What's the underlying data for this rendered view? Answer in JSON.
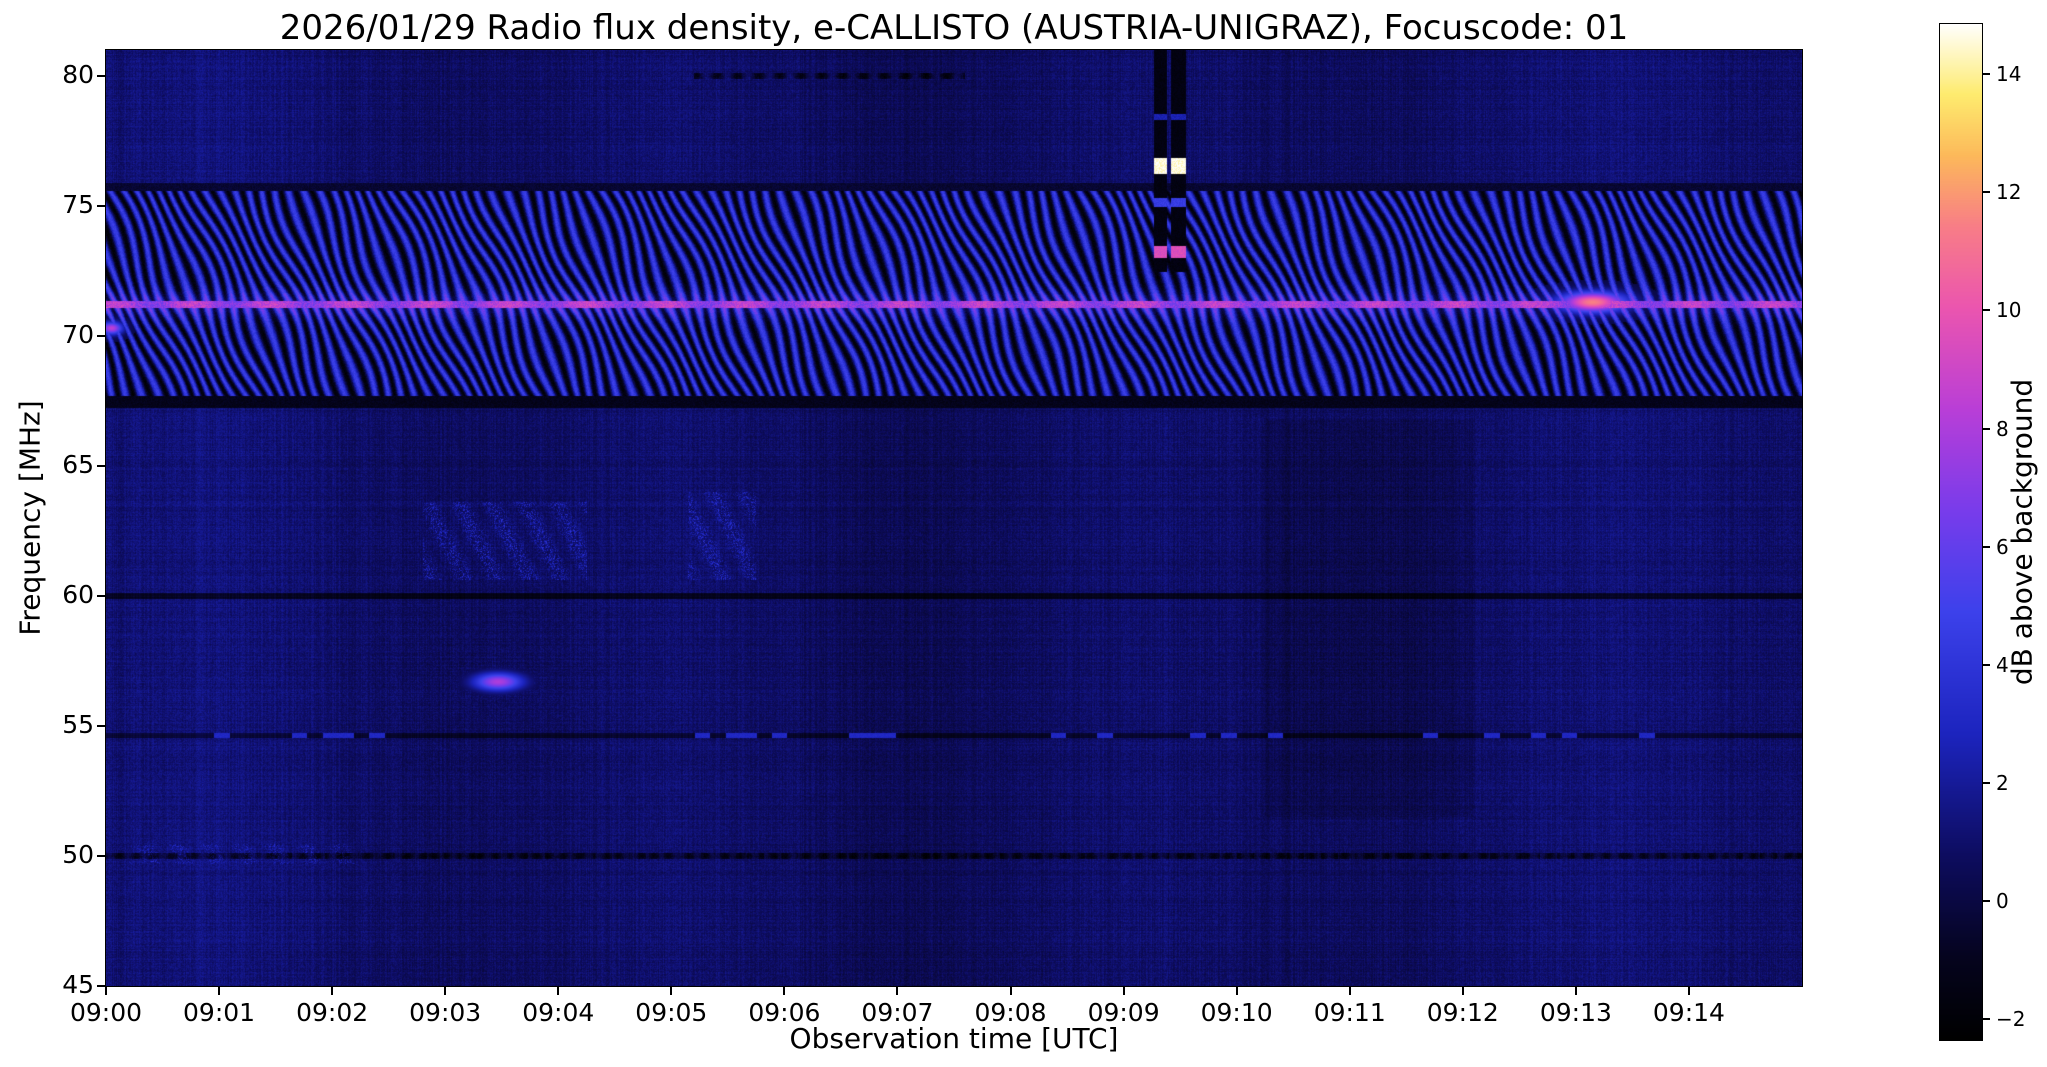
{
  "chart_data": {
    "type": "heatmap",
    "title": "2026/01/29  Radio flux density, e-CALLISTO (AUSTRIA-UNIGRAZ), Focuscode: 01",
    "xlabel": "Observation time [UTC]",
    "ylabel": "Frequency [MHz]",
    "x_ticks": [
      "09:00",
      "09:01",
      "09:02",
      "09:03",
      "09:04",
      "09:05",
      "09:06",
      "09:07",
      "09:08",
      "09:09",
      "09:10",
      "09:11",
      "09:12",
      "09:13",
      "09:14"
    ],
    "x_tick_positions": [
      0,
      1,
      2,
      3,
      4,
      5,
      6,
      7,
      8,
      9,
      10,
      11,
      12,
      13,
      14
    ],
    "xlim_minutes": [
      0,
      15
    ],
    "y_ticks": [
      45,
      50,
      55,
      60,
      65,
      70,
      75,
      80
    ],
    "ylim": [
      45,
      81
    ],
    "grid": false,
    "colorbar": {
      "label": "dB above background",
      "ticks": [
        -2,
        0,
        2,
        4,
        6,
        8,
        10,
        12,
        14
      ],
      "tick_labels": [
        "−2",
        "0",
        "2",
        "4",
        "6",
        "8",
        "10",
        "12",
        "14"
      ],
      "vmin": -2.35,
      "vmax": 14.85
    },
    "colormap_stops": [
      [
        0.0,
        [
          0,
          0,
          0
        ]
      ],
      [
        0.08,
        [
          5,
          4,
          30
        ]
      ],
      [
        0.18,
        [
          13,
          12,
          95
        ]
      ],
      [
        0.3,
        [
          28,
          36,
          190
        ]
      ],
      [
        0.42,
        [
          60,
          65,
          235
        ]
      ],
      [
        0.52,
        [
          120,
          60,
          235
        ]
      ],
      [
        0.62,
        [
          185,
          62,
          215
        ]
      ],
      [
        0.72,
        [
          235,
          85,
          175
        ]
      ],
      [
        0.8,
        [
          248,
          125,
          135
        ]
      ],
      [
        0.87,
        [
          252,
          185,
          90
        ]
      ],
      [
        0.93,
        [
          254,
          235,
          110
        ]
      ],
      [
        1.0,
        [
          255,
          255,
          255
        ]
      ]
    ],
    "features": {
      "background_db": 0.45,
      "noise_db": 0.95,
      "interference_band": {
        "f_min": 67.3,
        "f_max": 75.6,
        "base_db": 1.4,
        "stripe_db_amp": 3.3
      },
      "carrier_line": {
        "f": 71.2,
        "width": 0.26,
        "db": 7.8
      },
      "carrier_blob": {
        "t": 13.15,
        "t_width": 0.3,
        "f": 71.3,
        "f_width": 0.4,
        "db": 11.5
      },
      "extra_blobs": [
        {
          "t": 0.05,
          "t_width": 0.1,
          "f": 70.3,
          "f_width": 0.25,
          "db": 8.5
        }
      ],
      "burst": {
        "t_min": 9.27,
        "t_max": 9.55,
        "gap": [
          9.385,
          9.415
        ],
        "f_min": 72.45,
        "bg_db": -1.9,
        "cells": [
          {
            "f_min": 76.25,
            "f_max": 76.85,
            "db": 14.6
          },
          {
            "f_min": 73.0,
            "f_max": 73.45,
            "db": 9.5
          },
          {
            "f_min": 74.95,
            "f_max": 75.3,
            "db": 4.5
          },
          {
            "f_min": 78.3,
            "f_max": 78.55,
            "db": 2.6
          }
        ]
      },
      "dark_lines": [
        {
          "f": 60.0,
          "width": 0.22,
          "db_delta": -2.1,
          "dash": false,
          "blue_dash": false
        },
        {
          "f": 54.65,
          "width": 0.2,
          "db_delta": -1.6,
          "dash": false,
          "blue_dash": true
        },
        {
          "f": 50.0,
          "width": 0.26,
          "db_delta": -2.4,
          "dash": true,
          "blue_dash": false
        }
      ],
      "speckle_patches": [
        {
          "t_min": 2.8,
          "t_max": 4.25,
          "f_min": 60.6,
          "f_max": 63.6,
          "db_amp": 3.2
        },
        {
          "t_min": 5.15,
          "t_max": 5.75,
          "f_min": 60.6,
          "f_max": 64.0,
          "db_amp": 3.0
        },
        {
          "t_min": 0.2,
          "t_max": 2.2,
          "f_min": 49.7,
          "f_max": 50.45,
          "db_amp": 2.2
        }
      ],
      "pink_dot": {
        "t": 3.47,
        "t_width": 0.22,
        "f": 56.7,
        "f_width": 0.35,
        "db": 8.0
      },
      "top_dashes": {
        "f": 80.0,
        "width": 0.22,
        "t_min": 5.2,
        "t_max": 7.6,
        "db_delta": -2.2
      },
      "dim_patches": [
        {
          "t_min": 10.25,
          "t_max": 12.1,
          "f_min": 51.5,
          "f_max": 66.8,
          "db_delta": -0.35
        }
      ]
    }
  }
}
